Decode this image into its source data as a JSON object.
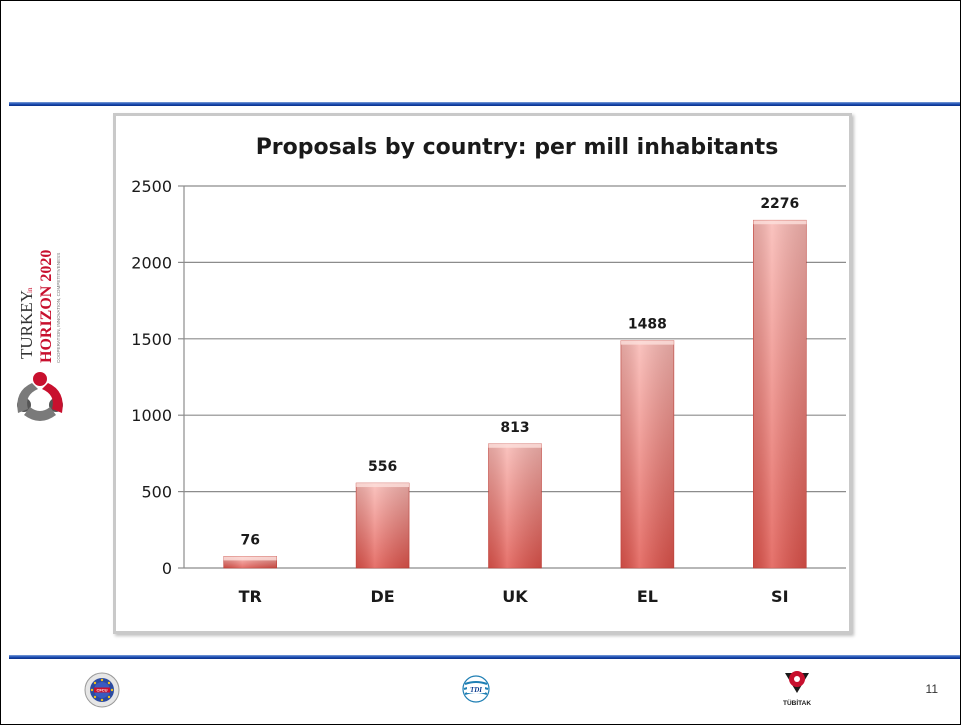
{
  "slide": {
    "page_number": "11",
    "side_logo_text_1": "TURKEY",
    "side_logo_text_2": "in",
    "side_logo_text_3": "HORIZON 2020",
    "side_logo_text_4": "COOPERATION, INNOVATION, COMPETITIVENESS",
    "footer_logo_right_text": "TÜBİTAK",
    "footer_logo_left_text": "CFCU",
    "footer_logo_center_text": "TDI"
  },
  "colors": {
    "bar_top": "#f9b7b2",
    "bar_bottom": "#e0534b",
    "rule_blue": "#1d4fb5",
    "grid": "#8c8c8c"
  },
  "chart_data": {
    "type": "bar",
    "title": "Proposals by country: per mill inhabitants",
    "categories": [
      "TR",
      "DE",
      "UK",
      "EL",
      "SI"
    ],
    "values": [
      76,
      556,
      813,
      1488,
      2276
    ],
    "data_labels": [
      "76",
      "556",
      "813",
      "1488",
      "2276"
    ],
    "xlabel": "",
    "ylabel": "",
    "ylim": [
      0,
      2500
    ],
    "yticks": [
      0,
      500,
      1000,
      1500,
      2000,
      2500
    ],
    "grid": true,
    "legend": "none"
  }
}
